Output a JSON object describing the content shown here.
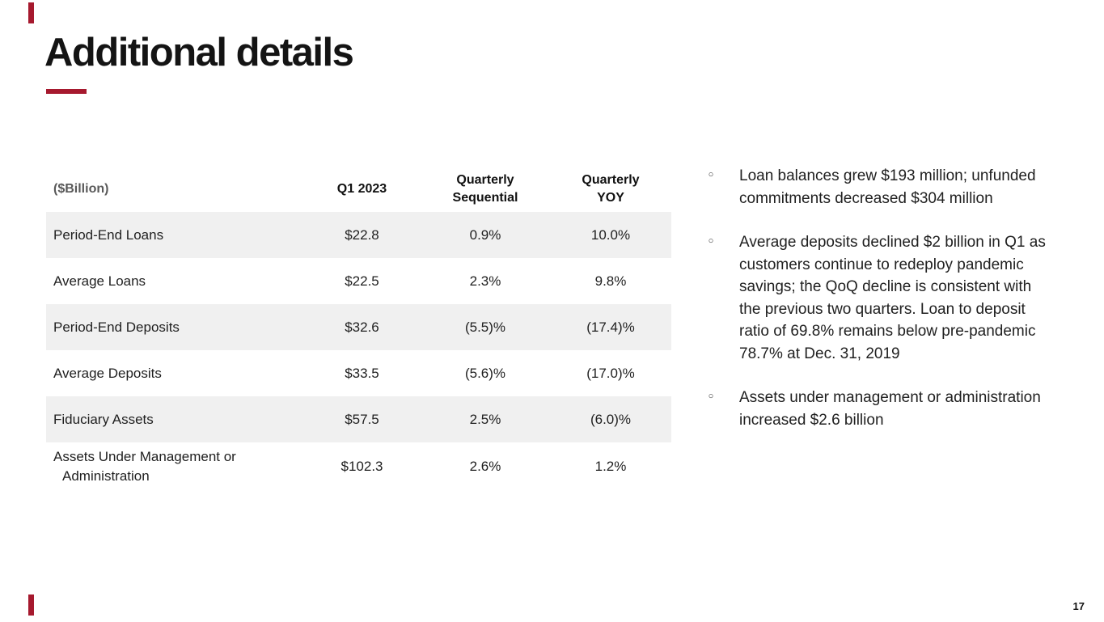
{
  "theme": {
    "accent_color": "#A6192E",
    "stripe_color": "#F0F0F0",
    "muted_header_color": "#595959"
  },
  "title": "Additional details",
  "page_number": "17",
  "table": {
    "unit_header": "($Billion)",
    "value_columns": [
      "Q1 2023",
      "Quarterly Sequential",
      "Quarterly YOY"
    ],
    "rows": [
      {
        "label": "Period-End Loans",
        "values": [
          "$22.8",
          "0.9%",
          "10.0%"
        ]
      },
      {
        "label": "Average Loans",
        "values": [
          "$22.5",
          "2.3%",
          "9.8%"
        ]
      },
      {
        "label": "Period-End Deposits",
        "values": [
          "$32.6",
          "(5.5)%",
          "(17.4)%"
        ]
      },
      {
        "label": "Average Deposits",
        "values": [
          "$33.5",
          "(5.6)%",
          "(17.0)%"
        ]
      },
      {
        "label": "Fiduciary Assets",
        "values": [
          "$57.5",
          "2.5%",
          "(6.0)%"
        ]
      },
      {
        "label": "Assets Under Management or Administration",
        "values": [
          "$102.3",
          "2.6%",
          "1.2%"
        ]
      }
    ]
  },
  "bullet_marker": "◦",
  "bullets": [
    "Loan balances grew $193 million; unfunded commitments decreased $304 million",
    "Average deposits declined $2 billion in Q1 as customers continue to redeploy pandemic savings; the QoQ decline is consistent with the previous two quarters. Loan to deposit ratio of 69.8% remains below pre-pandemic 78.7% at Dec. 31, 2019",
    "Assets under management or administration increased $2.6 billion"
  ]
}
